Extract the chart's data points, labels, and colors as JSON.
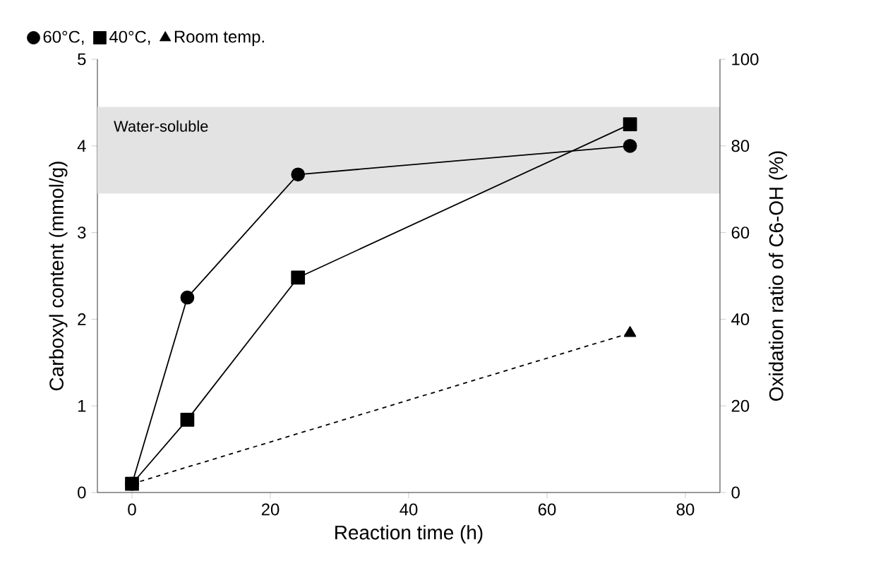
{
  "chart_data": {
    "type": "line",
    "xlabel": "Reaction time (h)",
    "ylabel": "Carboxyl content (mmol/g)",
    "y2label": "Oxidation ratio of C6-OH (%)",
    "x": [
      0,
      8,
      24,
      72
    ],
    "series": [
      {
        "name": "60°C,",
        "color": "#000000",
        "marker": "circle",
        "line_style": "solid",
        "values": [
          0.1,
          2.25,
          3.67,
          4.0
        ]
      },
      {
        "name": "40°C,",
        "color": "#000000",
        "marker": "square",
        "line_style": "solid",
        "values": [
          0.1,
          0.84,
          2.48,
          4.25
        ]
      },
      {
        "name": "Room temp.",
        "color": "#000000",
        "marker": "triangle",
        "line_style": "dashed",
        "x": [
          0,
          72
        ],
        "values": [
          0.1,
          1.84
        ]
      }
    ],
    "xlim": [
      -5,
      85
    ],
    "xticks": [
      0,
      20,
      40,
      60,
      80
    ],
    "ylim": [
      0,
      5
    ],
    "yticks": [
      0,
      1,
      2,
      3,
      4,
      5
    ],
    "y2lim": [
      0,
      100
    ],
    "y2ticks": [
      0,
      20,
      40,
      60,
      80,
      100
    ],
    "bands": [
      {
        "axis": "y",
        "from": 3.45,
        "to": 4.45,
        "label": "Water-soluble",
        "color": "#e3e3e3"
      }
    ],
    "legend": "top left",
    "grid": false
  }
}
